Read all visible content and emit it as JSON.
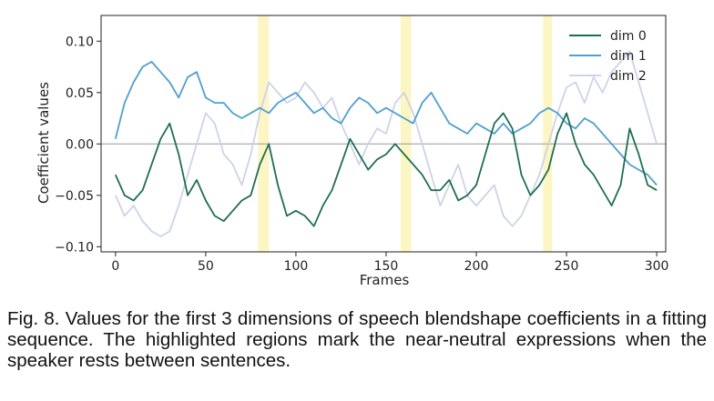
{
  "figure": {
    "caption_label": "Fig. 8.",
    "caption_text": "Values for the first 3 dimensions of speech blendshape coefficients in a fitting sequence. The highlighted regions mark the near-neutral expressions when the speaker rests between sentences."
  },
  "colors": {
    "dim0": "#1f6e52",
    "dim1": "#4f9fd0",
    "dim2": "#cfd2ea",
    "highlight": "#fbf6c3",
    "zero_line": "#999999"
  },
  "chart_data": {
    "type": "line",
    "title": "",
    "xlabel": "Frames",
    "ylabel": "Coefficient values",
    "xlim": [
      -8,
      305
    ],
    "ylim": [
      -0.105,
      0.125
    ],
    "xticks": [
      0,
      50,
      100,
      150,
      200,
      250,
      300
    ],
    "yticks": [
      -0.1,
      -0.05,
      0.0,
      0.05,
      0.1
    ],
    "ytick_labels": [
      "−0.10",
      "−0.05",
      "0.00",
      "0.05",
      "0.10"
    ],
    "legend_position": "top-right",
    "grid": false,
    "reference_line_y": 0,
    "highlight_regions": [
      [
        79,
        85
      ],
      [
        158,
        164
      ],
      [
        237,
        242
      ]
    ],
    "series": [
      {
        "name": "dim 0",
        "x": [
          0,
          5,
          10,
          15,
          20,
          25,
          30,
          35,
          40,
          45,
          50,
          55,
          60,
          65,
          70,
          75,
          80,
          85,
          90,
          95,
          100,
          105,
          110,
          115,
          120,
          125,
          130,
          135,
          140,
          145,
          150,
          155,
          160,
          165,
          170,
          175,
          180,
          185,
          190,
          195,
          200,
          205,
          210,
          215,
          220,
          225,
          230,
          235,
          240,
          245,
          250,
          255,
          260,
          265,
          270,
          275,
          280,
          285,
          290,
          295,
          300
        ],
        "values": [
          -0.03,
          -0.05,
          -0.055,
          -0.045,
          -0.02,
          0.005,
          0.02,
          -0.01,
          -0.05,
          -0.035,
          -0.055,
          -0.07,
          -0.075,
          -0.065,
          -0.055,
          -0.05,
          -0.02,
          0.0,
          -0.04,
          -0.07,
          -0.065,
          -0.07,
          -0.08,
          -0.06,
          -0.045,
          -0.02,
          0.005,
          -0.01,
          -0.025,
          -0.015,
          -0.01,
          0.0,
          -0.01,
          -0.02,
          -0.03,
          -0.045,
          -0.045,
          -0.035,
          -0.055,
          -0.05,
          -0.04,
          -0.01,
          0.02,
          0.03,
          0.015,
          -0.03,
          -0.05,
          -0.04,
          -0.025,
          0.01,
          0.03,
          0.0,
          -0.02,
          -0.03,
          -0.045,
          -0.06,
          -0.04,
          0.015,
          -0.01,
          -0.04,
          -0.045
        ]
      },
      {
        "name": "dim 1",
        "x": [
          0,
          5,
          10,
          15,
          20,
          25,
          30,
          35,
          40,
          45,
          50,
          55,
          60,
          65,
          70,
          75,
          80,
          85,
          90,
          95,
          100,
          105,
          110,
          115,
          120,
          125,
          130,
          135,
          140,
          145,
          150,
          155,
          160,
          165,
          170,
          175,
          180,
          185,
          190,
          195,
          200,
          205,
          210,
          215,
          220,
          225,
          230,
          235,
          240,
          245,
          250,
          255,
          260,
          265,
          270,
          275,
          280,
          285,
          290,
          295,
          300
        ],
        "values": [
          0.005,
          0.04,
          0.06,
          0.075,
          0.08,
          0.07,
          0.06,
          0.045,
          0.065,
          0.07,
          0.045,
          0.04,
          0.04,
          0.03,
          0.025,
          0.03,
          0.035,
          0.03,
          0.04,
          0.045,
          0.05,
          0.04,
          0.03,
          0.035,
          0.025,
          0.02,
          0.035,
          0.045,
          0.04,
          0.03,
          0.035,
          0.03,
          0.025,
          0.02,
          0.04,
          0.05,
          0.035,
          0.02,
          0.015,
          0.01,
          0.02,
          0.015,
          0.01,
          0.02,
          0.01,
          0.015,
          0.02,
          0.03,
          0.035,
          0.03,
          0.02,
          0.015,
          0.025,
          0.02,
          0.01,
          0.0,
          -0.01,
          -0.02,
          -0.025,
          -0.03,
          -0.04
        ]
      },
      {
        "name": "dim 2",
        "x": [
          0,
          5,
          10,
          15,
          20,
          25,
          30,
          35,
          40,
          45,
          50,
          55,
          60,
          65,
          70,
          75,
          80,
          85,
          90,
          95,
          100,
          105,
          110,
          115,
          120,
          125,
          130,
          135,
          140,
          145,
          150,
          155,
          160,
          165,
          170,
          175,
          180,
          185,
          190,
          195,
          200,
          205,
          210,
          215,
          220,
          225,
          230,
          235,
          240,
          245,
          250,
          255,
          260,
          265,
          270,
          275,
          280,
          285,
          290,
          295,
          300
        ],
        "values": [
          -0.05,
          -0.07,
          -0.06,
          -0.075,
          -0.085,
          -0.09,
          -0.085,
          -0.06,
          -0.03,
          0.0,
          0.03,
          0.02,
          -0.01,
          -0.02,
          -0.04,
          -0.01,
          0.03,
          0.06,
          0.05,
          0.04,
          0.045,
          0.06,
          0.05,
          0.035,
          0.045,
          0.02,
          0.0,
          -0.02,
          0.0,
          0.015,
          0.01,
          0.04,
          0.05,
          0.03,
          0.0,
          -0.03,
          -0.06,
          -0.04,
          -0.02,
          -0.05,
          -0.06,
          -0.05,
          -0.04,
          -0.07,
          -0.08,
          -0.07,
          -0.05,
          -0.03,
          0.0,
          0.03,
          0.055,
          0.06,
          0.04,
          0.065,
          0.05,
          0.07,
          0.08,
          0.09,
          0.06,
          0.03,
          0.0
        ]
      }
    ]
  }
}
